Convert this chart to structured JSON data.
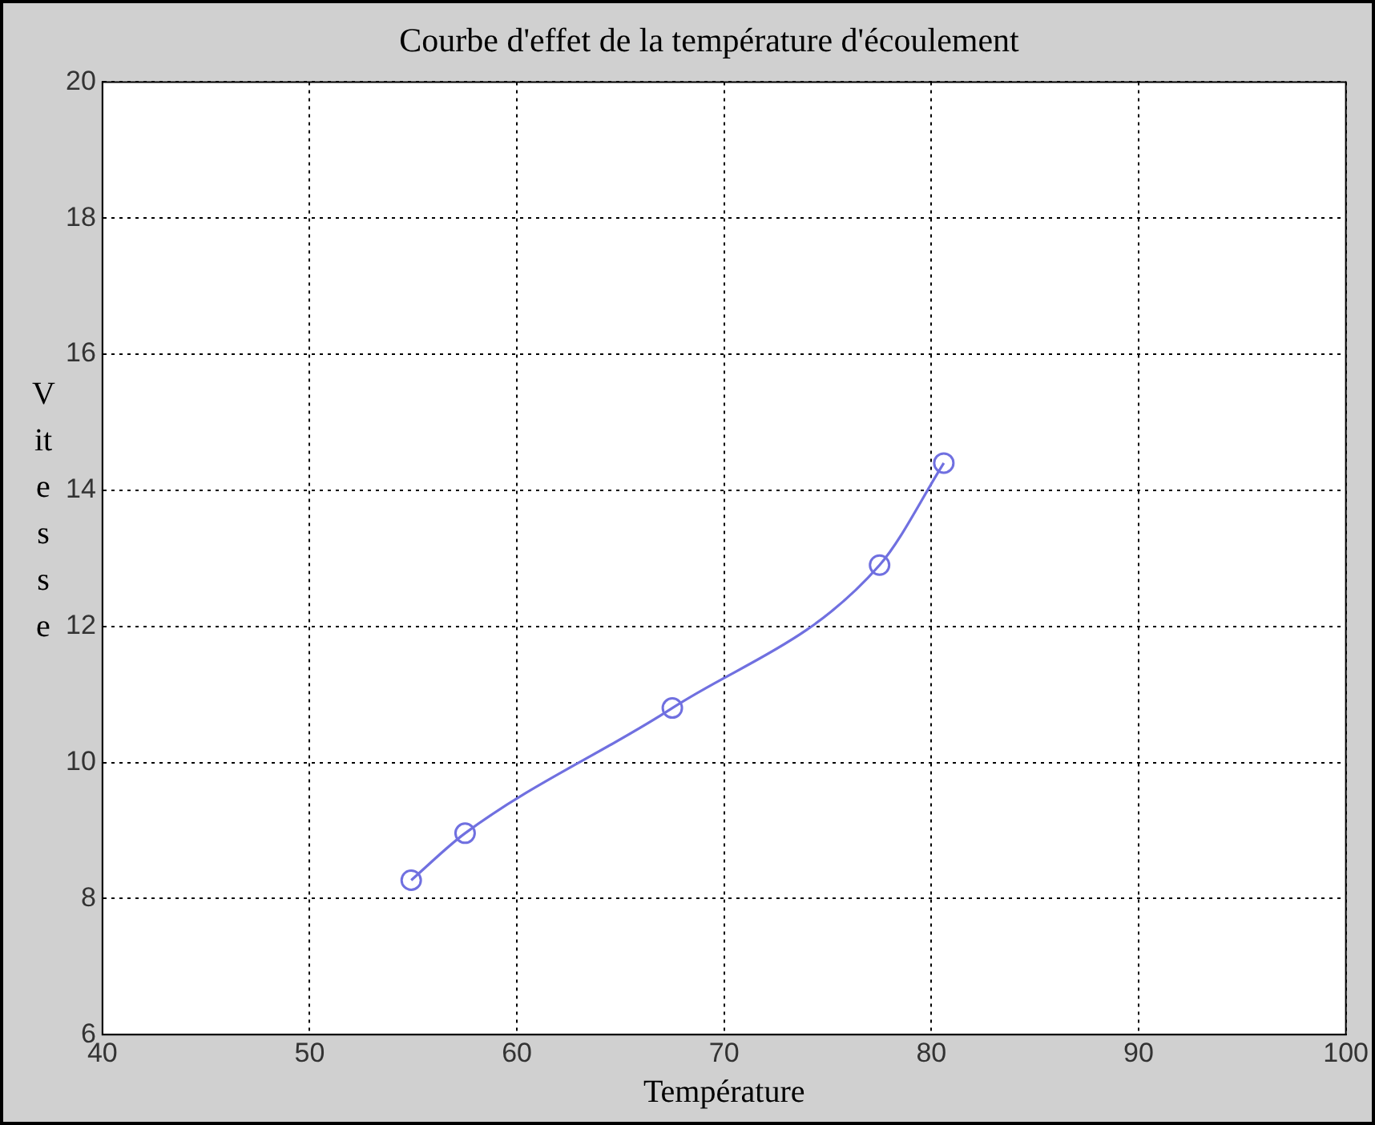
{
  "chart_data": {
    "type": "line",
    "title": "Courbe d'effet de la température d'écoulement",
    "xlabel": "Température",
    "ylabel": "Vitesse",
    "series": [
      {
        "color": "#7070e0",
        "x": [
          54.9,
          57.5,
          67.5,
          77.5,
          80.6
        ],
        "values": [
          8.27,
          8.96,
          10.8,
          12.9,
          14.4
        ]
      }
    ],
    "xlim": [
      40,
      100
    ],
    "xticks": [
      40,
      50,
      60,
      70,
      80,
      90,
      100
    ],
    "ylim": [
      6,
      20
    ],
    "yticks": [
      6,
      8,
      10,
      12,
      14,
      16,
      18,
      20
    ],
    "grid": true,
    "legend": false,
    "marker": "circle",
    "line_style": "solid"
  }
}
